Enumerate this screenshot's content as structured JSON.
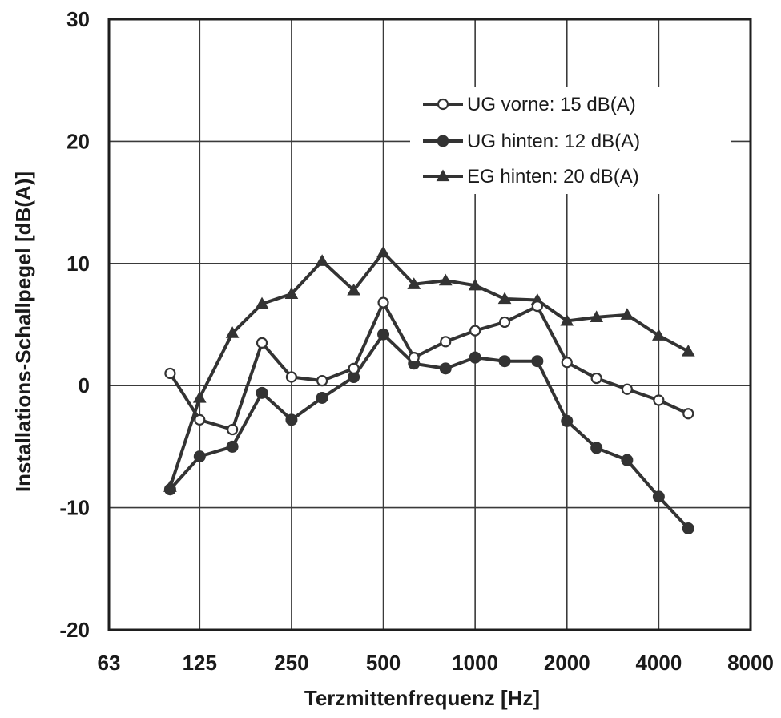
{
  "chart_data": {
    "type": "line",
    "title": "",
    "xlabel": "Terzmittenfrequenz [Hz]",
    "ylabel": "Installations-Schallpegel [dB(A)]",
    "x_scale": "log2",
    "xlim": [
      63,
      8000
    ],
    "ylim": [
      -20,
      30
    ],
    "x_ticks": [
      63,
      125,
      250,
      500,
      1000,
      2000,
      4000,
      8000
    ],
    "x_tick_labels": [
      "63",
      "125",
      "250",
      "500",
      "1000",
      "2000",
      "4000",
      "8000"
    ],
    "y_ticks": [
      -20,
      -10,
      0,
      10,
      20,
      30
    ],
    "y_tick_labels": [
      "-20",
      "-10",
      "0",
      "10",
      "20",
      "30"
    ],
    "grid": true,
    "legend_position": "top-right",
    "x": [
      100,
      125,
      160,
      200,
      250,
      315,
      400,
      500,
      630,
      800,
      1000,
      1250,
      1600,
      2000,
      2500,
      3150,
      4000,
      5000
    ],
    "series": [
      {
        "name": "UG vorne: 15 dB(A)",
        "marker": "open-circle",
        "color": "#333333",
        "values": [
          1.0,
          -2.8,
          -3.6,
          3.5,
          0.7,
          0.4,
          1.4,
          6.8,
          2.3,
          3.6,
          4.5,
          5.2,
          6.5,
          1.9,
          0.6,
          -0.3,
          -1.2,
          -2.3
        ]
      },
      {
        "name": "UG hinten: 12 dB(A)",
        "marker": "filled-circle",
        "color": "#333333",
        "values": [
          -8.5,
          -5.8,
          -5.0,
          -0.6,
          -2.8,
          -1.0,
          0.7,
          4.2,
          1.8,
          1.4,
          2.3,
          2.0,
          2.0,
          -2.9,
          -5.1,
          -6.1,
          -9.1,
          -11.7
        ]
      },
      {
        "name": "EG hinten: 20 dB(A)",
        "marker": "filled-triangle",
        "color": "#333333",
        "values": [
          -8.3,
          -1.0,
          4.3,
          6.7,
          7.5,
          10.2,
          7.8,
          10.9,
          8.3,
          8.6,
          8.2,
          7.1,
          7.0,
          5.3,
          5.6,
          5.8,
          4.1,
          2.8
        ]
      }
    ]
  }
}
